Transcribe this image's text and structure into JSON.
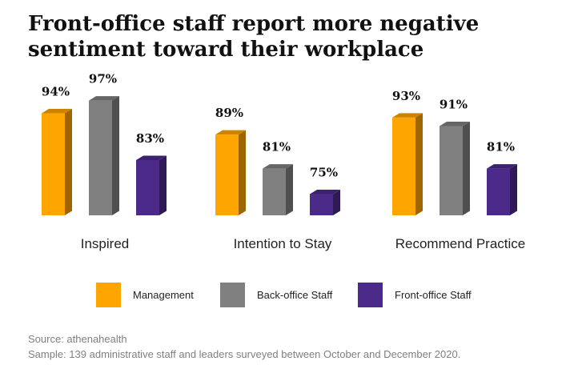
{
  "title_lines": [
    "Front-office staff report more negative",
    "sentiment toward their workplace"
  ],
  "source": "Source: athenahealth",
  "sample": "Sample: 139 administrative staff and leaders surveyed between October and December 2020.",
  "colors": {
    "management": "#FFA500",
    "back_office": "#808080",
    "front_office": "#4B2A8A"
  },
  "chart_data": {
    "type": "bar",
    "categories": [
      "Inspired",
      "Intention to Stay",
      "Recommend Practice"
    ],
    "series": [
      {
        "name": "Management",
        "values": [
          94,
          89,
          93
        ]
      },
      {
        "name": "Back-office Staff",
        "values": [
          97,
          81,
          91
        ]
      },
      {
        "name": "Front-office Staff",
        "values": [
          83,
          75,
          81
        ]
      }
    ],
    "value_suffix": "%",
    "legend_position": "bottom",
    "grid": false
  }
}
